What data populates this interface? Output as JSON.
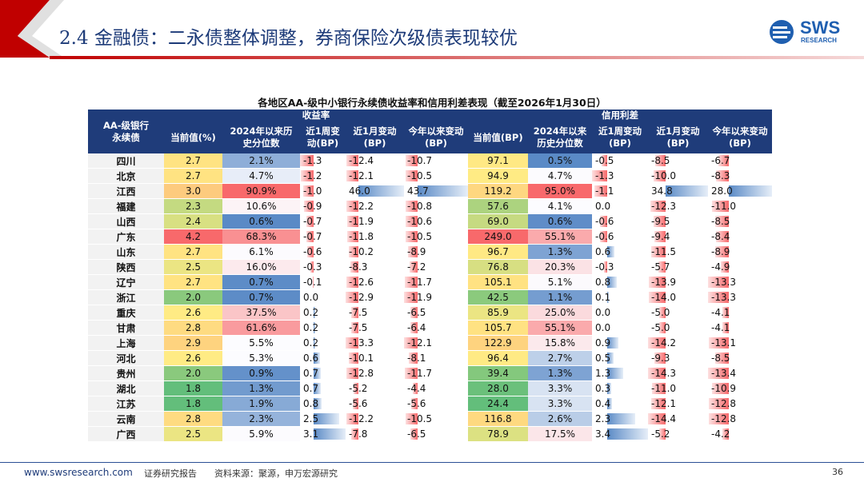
{
  "header": {
    "title": "2.4 金融债：二永债整体调整，券商保险次级债表现较优",
    "logo": "SWS",
    "logo_sub": "RESEARCH"
  },
  "table": {
    "title": "各地区AA-级中小银行永续债收益率和信用利差表现（截至2026年1月30日）",
    "group_headers": [
      "收益率",
      "信用利差"
    ],
    "columns": [
      "AA-级银行永续债",
      "当前值(%)",
      "2024年以来历史分位数",
      "近1周变动(BP)",
      "近1月变动(BP)",
      "今年以来变动(BP)",
      "当前值(BP)",
      "2024年以来历史分位数",
      "近1周变动(BP)",
      "近1月变动(BP)",
      "今年以来变动(BP)"
    ],
    "rows": [
      [
        "四川",
        "2.7",
        "2.1%",
        "-1.3",
        "-12.4",
        "-10.7",
        "97.1",
        "0.5%",
        "-0.5",
        "-8.5",
        "-6.7"
      ],
      [
        "北京",
        "2.7",
        "4.7%",
        "-1.2",
        "-12.1",
        "-10.5",
        "94.9",
        "4.7%",
        "-1.3",
        "-10.0",
        "-8.3"
      ],
      [
        "江西",
        "3.0",
        "90.9%",
        "-1.0",
        "46.0",
        "43.7",
        "119.2",
        "95.0%",
        "-1.1",
        "34.8",
        "28.0"
      ],
      [
        "福建",
        "2.3",
        "10.6%",
        "-0.9",
        "-12.2",
        "-10.8",
        "57.6",
        "4.1%",
        "0.0",
        "-12.3",
        "-11.0"
      ],
      [
        "山西",
        "2.4",
        "0.6%",
        "-0.7",
        "-11.9",
        "-10.6",
        "69.0",
        "0.6%",
        "-0.6",
        "-9.5",
        "-8.5"
      ],
      [
        "广东",
        "4.2",
        "68.3%",
        "-0.7",
        "-11.8",
        "-10.5",
        "249.0",
        "55.1%",
        "-0.6",
        "-9.4",
        "-8.4"
      ],
      [
        "山东",
        "2.7",
        "6.1%",
        "-0.6",
        "-10.2",
        "-8.9",
        "96.7",
        "1.3%",
        "0.6",
        "-11.5",
        "-8.9"
      ],
      [
        "陕西",
        "2.5",
        "16.0%",
        "-0.3",
        "-8.3",
        "-7.2",
        "76.8",
        "20.3%",
        "-0.3",
        "-5.7",
        "-4.9"
      ],
      [
        "辽宁",
        "2.7",
        "0.7%",
        "-0.1",
        "-12.6",
        "-11.7",
        "105.1",
        "5.1%",
        "0.8",
        "-13.9",
        "-13.3"
      ],
      [
        "浙江",
        "2.0",
        "0.7%",
        "0.0",
        "-12.9",
        "-11.9",
        "42.5",
        "1.1%",
        "0.1",
        "-14.0",
        "-13.3"
      ],
      [
        "重庆",
        "2.6",
        "37.5%",
        "0.2",
        "-7.5",
        "-6.5",
        "85.9",
        "25.0%",
        "0.0",
        "-5.0",
        "-4.1"
      ],
      [
        "甘肃",
        "2.8",
        "61.6%",
        "0.2",
        "-7.5",
        "-6.4",
        "105.7",
        "55.1%",
        "0.0",
        "-5.0",
        "-4.1"
      ],
      [
        "上海",
        "2.9",
        "5.5%",
        "0.2",
        "-13.3",
        "-12.1",
        "122.9",
        "15.8%",
        "0.9",
        "-14.2",
        "-13.1"
      ],
      [
        "河北",
        "2.6",
        "5.3%",
        "0.6",
        "-10.1",
        "-8.1",
        "96.4",
        "2.7%",
        "0.5",
        "-9.3",
        "-8.5"
      ],
      [
        "贵州",
        "2.0",
        "0.9%",
        "0.7",
        "-12.8",
        "-11.7",
        "39.4",
        "1.3%",
        "1.3",
        "-14.3",
        "-13.4"
      ],
      [
        "湖北",
        "1.8",
        "1.3%",
        "0.7",
        "-5.2",
        "-4.4",
        "28.0",
        "3.3%",
        "0.3",
        "-11.0",
        "-10.9"
      ],
      [
        "江苏",
        "1.8",
        "1.9%",
        "0.8",
        "-5.6",
        "-5.6",
        "24.4",
        "3.3%",
        "0.4",
        "-12.1",
        "-12.8"
      ],
      [
        "云南",
        "2.8",
        "2.3%",
        "2.5",
        "-12.2",
        "-10.5",
        "116.8",
        "2.6%",
        "2.3",
        "-14.4",
        "-12.8"
      ],
      [
        "广西",
        "2.5",
        "5.9%",
        "3.1",
        "-7.8",
        "-6.5",
        "78.9",
        "17.5%",
        "3.4",
        "-5.2",
        "-4.2"
      ]
    ]
  },
  "footer": {
    "website": "www.swsresearch.com",
    "report": "证券研究报告",
    "source": "资料来源：聚源，申万宏源研究",
    "page": "36"
  }
}
